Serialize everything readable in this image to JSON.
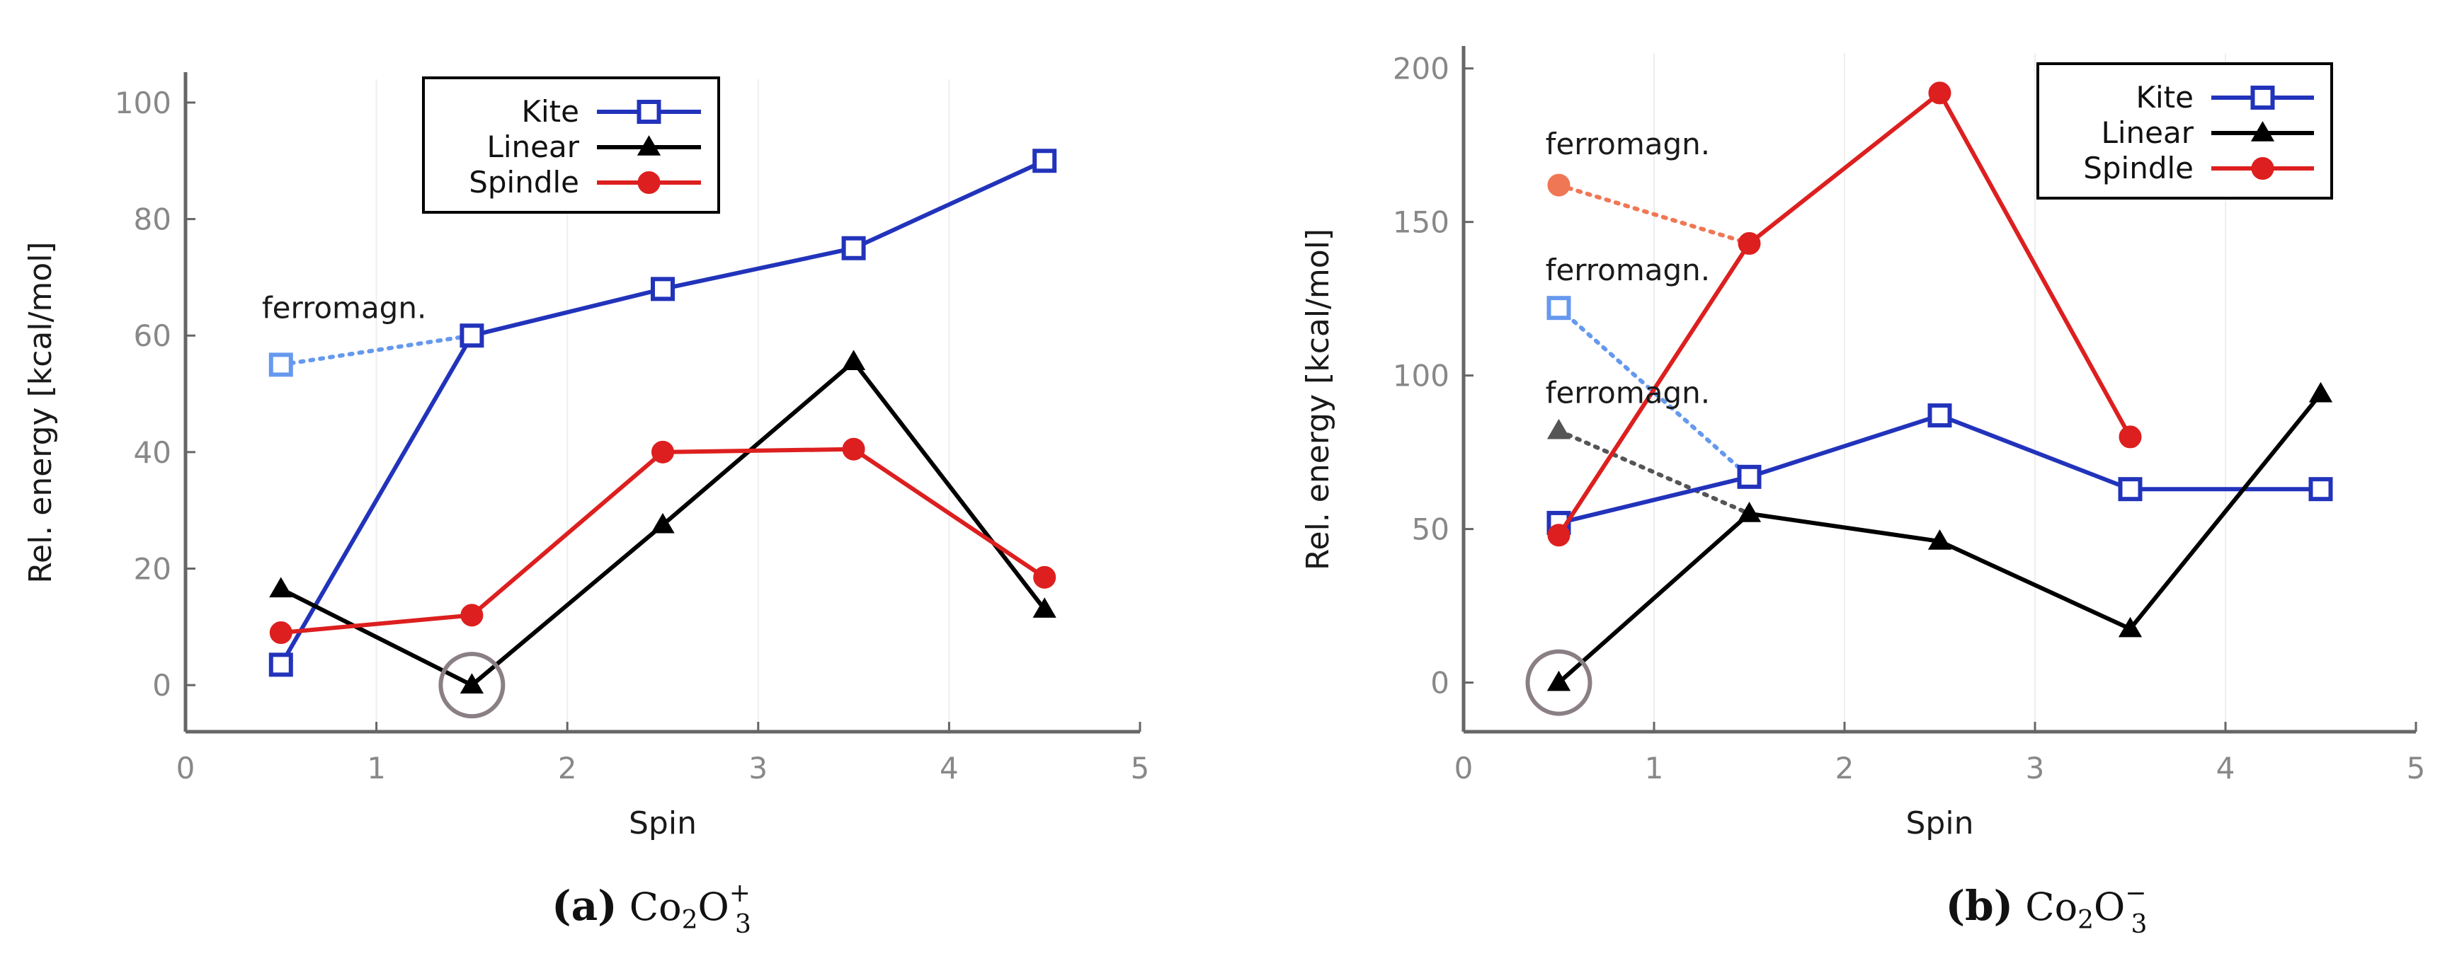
{
  "chart_data": [
    {
      "type": "line",
      "caption_letter": "(a)",
      "caption_formula": "Co2O3+",
      "caption_parts": {
        "base1": "Co",
        "sub1": "2",
        "base2": "O",
        "sub2": "3",
        "sup": "+"
      },
      "xlabel": "Spin",
      "ylabel": "Rel. energy [kcal/mol]",
      "xlim": [
        0,
        5
      ],
      "ylim": [
        -8,
        104
      ],
      "xticks": [
        0,
        1,
        2,
        3,
        4,
        5
      ],
      "yticks": [
        0,
        20,
        40,
        60,
        80,
        100
      ],
      "legend_position": "top-center",
      "series": [
        {
          "name": "Kite",
          "color": "#2233bb",
          "marker": "square",
          "x": [
            0.5,
            1.5,
            2.5,
            3.5,
            4.5
          ],
          "y": [
            3.5,
            60,
            68,
            75,
            90
          ]
        },
        {
          "name": "Linear",
          "color": "#000000",
          "marker": "triangle",
          "x": [
            0.5,
            1.5,
            2.5,
            3.5,
            4.5
          ],
          "y": [
            16.5,
            0,
            27.5,
            55.5,
            13
          ]
        },
        {
          "name": "Spindle",
          "color": "#dd1f1f",
          "marker": "circle",
          "x": [
            0.5,
            1.5,
            2.5,
            3.5,
            4.5
          ],
          "y": [
            9,
            12,
            40,
            40.5,
            18.5
          ]
        }
      ],
      "ferromagnetic": [
        {
          "series": "Kite",
          "color": "#6699ee",
          "marker": "square",
          "x": [
            0.5,
            1.5
          ],
          "y": [
            55,
            60
          ]
        }
      ],
      "annotations": [
        {
          "text": "ferromagn.",
          "x": 0.4,
          "y": 63
        }
      ],
      "ground_state": {
        "x": 1.5,
        "y": 0
      }
    },
    {
      "type": "line",
      "caption_letter": "(b)",
      "caption_formula": "Co2O3−",
      "caption_parts": {
        "base1": "Co",
        "sub1": "2",
        "base2": "O",
        "sub2": "3",
        "sup": "−"
      },
      "xlabel": "Spin",
      "ylabel": "Rel. energy [kcal/mol]",
      "xlim": [
        0,
        5
      ],
      "ylim": [
        -16,
        205
      ],
      "xticks": [
        0,
        1,
        2,
        3,
        4,
        5
      ],
      "yticks": [
        0,
        50,
        100,
        150,
        200
      ],
      "legend_position": "top-right",
      "series": [
        {
          "name": "Kite",
          "color": "#2233bb",
          "marker": "square",
          "x": [
            0.5,
            1.5,
            2.5,
            3.5,
            4.5
          ],
          "y": [
            52,
            67,
            87,
            63,
            63
          ]
        },
        {
          "name": "Linear",
          "color": "#000000",
          "marker": "triangle",
          "x": [
            0.5,
            1.5,
            2.5,
            3.5,
            4.5
          ],
          "y": [
            0,
            55,
            46,
            17.5,
            94
          ]
        },
        {
          "name": "Spindle",
          "color": "#dd1f1f",
          "marker": "circle",
          "x": [
            0.5,
            1.5,
            2.5,
            3.5
          ],
          "y": [
            48,
            143,
            192,
            80
          ]
        }
      ],
      "ferromagnetic": [
        {
          "series": "Spindle",
          "color": "#f07755",
          "marker": "circle",
          "x": [
            0.5,
            1.5
          ],
          "y": [
            162,
            143
          ]
        },
        {
          "series": "Kite",
          "color": "#6699ee",
          "marker": "square",
          "x": [
            0.5,
            1.5
          ],
          "y": [
            122,
            67
          ]
        },
        {
          "series": "Linear",
          "color": "#555555",
          "marker": "triangle",
          "x": [
            0.5,
            1.5
          ],
          "y": [
            82,
            55
          ]
        }
      ],
      "annotations": [
        {
          "text": "ferromagn.",
          "x": 0.43,
          "y": 172
        },
        {
          "text": "ferromagn.",
          "x": 0.43,
          "y": 131
        },
        {
          "text": "ferromagn.",
          "x": 0.43,
          "y": 91
        }
      ],
      "ground_state": {
        "x": 0.5,
        "y": 0
      }
    }
  ]
}
